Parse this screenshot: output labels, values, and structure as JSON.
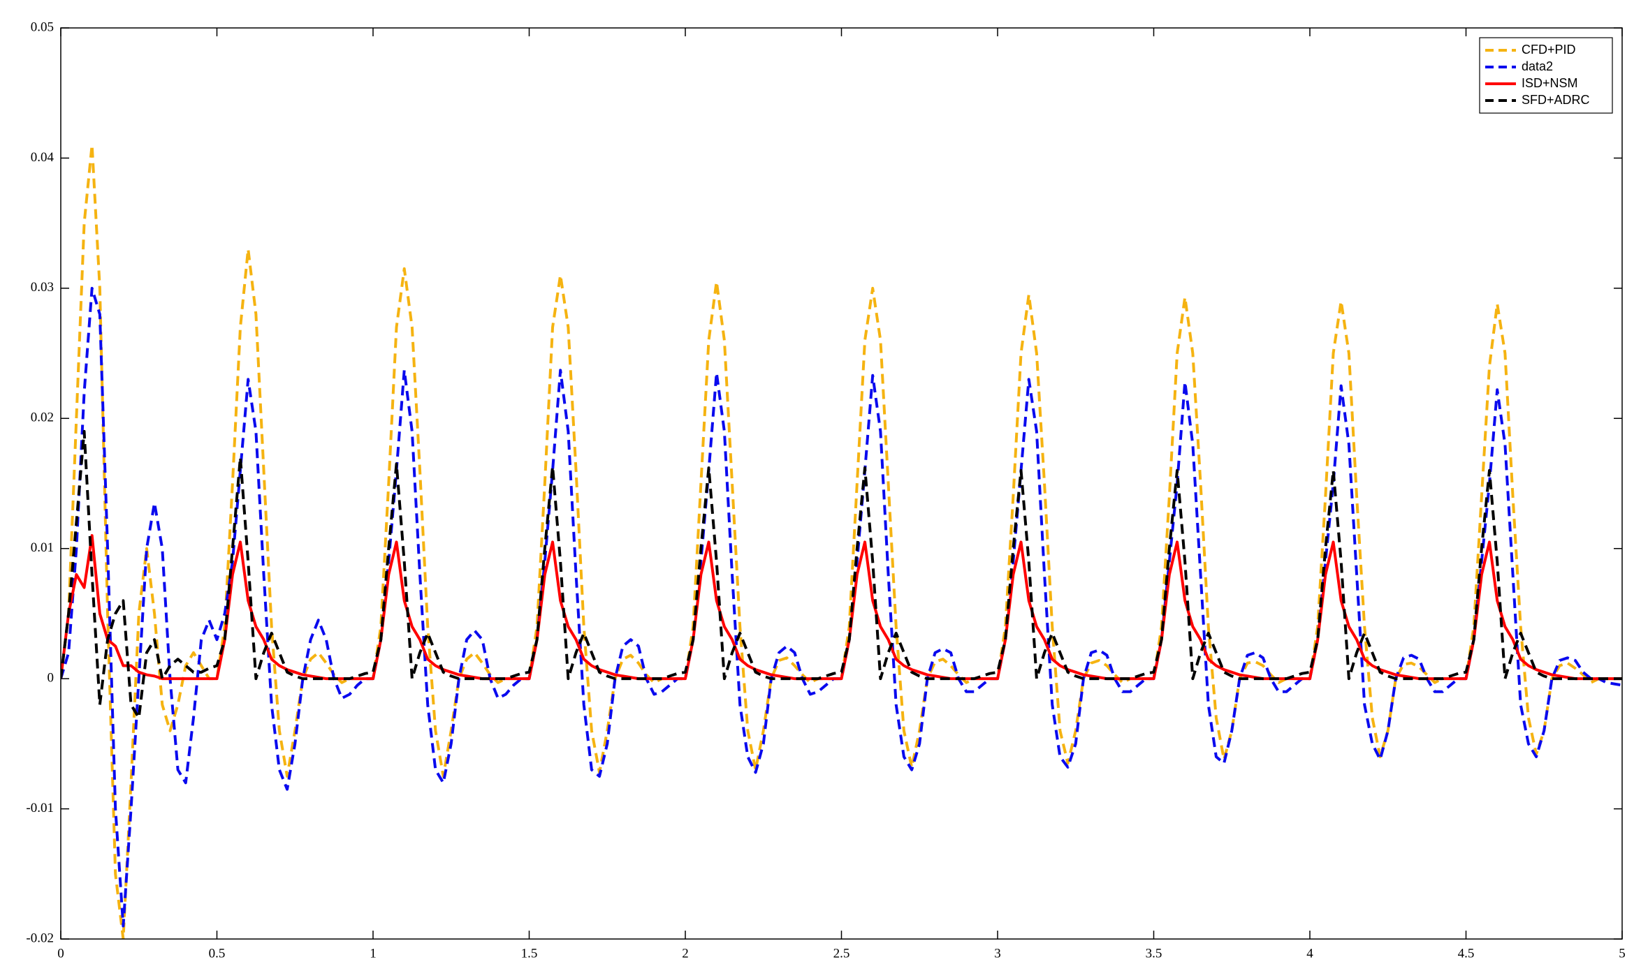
{
  "chart_data": {
    "type": "line",
    "x": [
      0,
      0.025,
      0.05,
      0.075,
      0.1,
      0.125,
      0.15,
      0.175,
      0.2,
      0.225,
      0.25,
      0.275,
      0.3,
      0.325,
      0.35,
      0.375,
      0.4,
      0.425,
      0.45,
      0.475,
      0.5,
      0.525,
      0.55,
      0.575,
      0.6,
      0.625,
      0.65,
      0.675,
      0.7,
      0.725,
      0.75,
      0.775,
      0.8,
      0.825,
      0.85,
      0.875,
      0.9,
      0.925,
      0.95,
      0.975,
      1,
      1.025,
      1.05,
      1.075,
      1.1,
      1.125,
      1.15,
      1.175,
      1.2,
      1.225,
      1.25,
      1.275,
      1.3,
      1.325,
      1.35,
      1.375,
      1.4,
      1.425,
      1.45,
      1.475,
      1.5,
      1.525,
      1.55,
      1.575,
      1.6,
      1.625,
      1.65,
      1.675,
      1.7,
      1.725,
      1.75,
      1.775,
      1.8,
      1.825,
      1.85,
      1.875,
      1.9,
      1.925,
      1.95,
      1.975,
      2,
      2.025,
      2.05,
      2.075,
      2.1,
      2.125,
      2.15,
      2.175,
      2.2,
      2.225,
      2.25,
      2.275,
      2.3,
      2.325,
      2.35,
      2.375,
      2.4,
      2.425,
      2.45,
      2.475,
      2.5,
      2.525,
      2.55,
      2.575,
      2.6,
      2.625,
      2.65,
      2.675,
      2.7,
      2.725,
      2.75,
      2.775,
      2.8,
      2.825,
      2.85,
      2.875,
      2.9,
      2.925,
      2.95,
      2.975,
      3,
      3.025,
      3.05,
      3.075,
      3.1,
      3.125,
      3.15,
      3.175,
      3.2,
      3.225,
      3.25,
      3.275,
      3.3,
      3.325,
      3.35,
      3.375,
      3.4,
      3.425,
      3.45,
      3.475,
      3.5,
      3.525,
      3.55,
      3.575,
      3.6,
      3.625,
      3.65,
      3.675,
      3.7,
      3.725,
      3.75,
      3.775,
      3.8,
      3.825,
      3.85,
      3.875,
      3.9,
      3.925,
      3.95,
      3.975,
      4,
      4.025,
      4.05,
      4.075,
      4.1,
      4.125,
      4.15,
      4.175,
      4.2,
      4.225,
      4.25,
      4.275,
      4.3,
      4.325,
      4.35,
      4.375,
      4.4,
      4.425,
      4.45,
      4.475,
      4.5,
      4.525,
      4.55,
      4.575,
      4.6,
      4.625,
      4.65,
      4.675,
      4.7,
      4.725,
      4.75,
      4.775,
      4.8,
      4.825,
      4.85,
      4.875,
      4.9,
      4.925,
      4.95,
      4.975,
      5
    ],
    "series": [
      {
        "name": "CFD+PID",
        "color": "#f5b311",
        "dash": true,
        "values": [
          0,
          0.005,
          0.02,
          0.035,
          0.041,
          0.03,
          0.005,
          -0.015,
          -0.02,
          -0.008,
          0.005,
          0.01,
          0.005,
          -0.002,
          -0.004,
          -0.002,
          0.001,
          0.002,
          0.001,
          0,
          0,
          0.004,
          0.015,
          0.027,
          0.033,
          0.028,
          0.016,
          0.004,
          -0.004,
          -0.0075,
          -0.004,
          0,
          0.0015,
          0.002,
          0.0012,
          0.0003,
          -0.0003,
          0,
          0,
          0,
          0,
          0.004,
          0.015,
          0.027,
          0.0315,
          0.027,
          0.016,
          0.004,
          -0.004,
          -0.0075,
          -0.004,
          0,
          0.0015,
          0.002,
          0.0012,
          0.0003,
          -0.0003,
          0,
          0,
          0,
          0,
          0.004,
          0.015,
          0.027,
          0.031,
          0.027,
          0.016,
          0.004,
          -0.004,
          -0.0072,
          -0.004,
          0,
          0.0015,
          0.0018,
          0.0012,
          0.0003,
          -0.0003,
          0,
          0,
          0,
          0,
          0.004,
          0.015,
          0.026,
          0.0305,
          0.026,
          0.015,
          0.004,
          -0.004,
          -0.007,
          -0.004,
          0,
          0.0014,
          0.0016,
          0.001,
          0.0003,
          -0.0003,
          0,
          0,
          0,
          0,
          0.004,
          0.015,
          0.026,
          0.03,
          0.026,
          0.015,
          0.004,
          -0.004,
          -0.0068,
          -0.004,
          0,
          0.0013,
          0.0015,
          0.001,
          0.0003,
          -0.0003,
          0,
          0,
          0,
          0,
          0.004,
          0.014,
          0.025,
          0.0295,
          0.025,
          0.015,
          0.004,
          -0.004,
          -0.0065,
          -0.004,
          0,
          0.0012,
          0.0014,
          0.001,
          0.0003,
          -0.0003,
          0,
          0,
          0,
          0,
          0.004,
          0.014,
          0.025,
          0.0293,
          0.025,
          0.015,
          0.004,
          -0.003,
          -0.0062,
          -0.004,
          0,
          0.0012,
          0.0013,
          0.001,
          0.0003,
          -0.0003,
          0,
          0,
          0,
          0,
          0.004,
          0.014,
          0.025,
          0.029,
          0.025,
          0.014,
          0.004,
          -0.003,
          -0.006,
          -0.004,
          0,
          0.0011,
          0.0012,
          0.0009,
          0.0003,
          -0.0003,
          0,
          0,
          0,
          0,
          0.004,
          0.014,
          0.024,
          0.0288,
          0.025,
          0.014,
          0.004,
          -0.003,
          -0.0058,
          -0.004,
          0,
          0.001,
          0.0012,
          0.0008,
          0.0003,
          -0.0003,
          0,
          0,
          0,
          0
        ]
      },
      {
        "name": "data2",
        "color": "#0a0aee",
        "dash": true,
        "values": [
          0,
          0.002,
          0.01,
          0.022,
          0.03,
          0.028,
          0.01,
          -0.01,
          -0.019,
          -0.01,
          0,
          0.01,
          0.0135,
          0.01,
          0,
          -0.007,
          -0.008,
          -0.003,
          0.003,
          0.0045,
          0.003,
          0.005,
          0.009,
          0.016,
          0.023,
          0.019,
          0.008,
          -0.002,
          -0.007,
          -0.0085,
          -0.005,
          0,
          0.003,
          0.0045,
          0.003,
          0,
          -0.0015,
          -0.0012,
          -0.0005,
          0,
          0,
          0.003,
          0.009,
          0.016,
          0.0237,
          0.019,
          0.008,
          -0.002,
          -0.007,
          -0.008,
          -0.005,
          0,
          0.003,
          0.0037,
          0.003,
          0,
          -0.0015,
          -0.0012,
          -0.0005,
          0,
          0,
          0.003,
          0.009,
          0.016,
          0.0237,
          0.019,
          0.008,
          -0.002,
          -0.007,
          -0.0075,
          -0.005,
          0,
          0.0025,
          0.003,
          0.0025,
          0,
          -0.0012,
          -0.001,
          -0.0005,
          0,
          0,
          0.003,
          0.009,
          0.016,
          0.0235,
          0.019,
          0.008,
          -0.002,
          -0.006,
          -0.0072,
          -0.005,
          0,
          0.002,
          0.0025,
          0.002,
          0,
          -0.0012,
          -0.001,
          -0.0005,
          0,
          0,
          0.003,
          0.009,
          0.016,
          0.0233,
          0.019,
          0.008,
          -0.002,
          -0.006,
          -0.007,
          -0.005,
          0,
          0.002,
          0.0023,
          0.002,
          0,
          -0.001,
          -0.001,
          -0.0005,
          0,
          0,
          0.003,
          0.009,
          0.016,
          0.023,
          0.019,
          0.008,
          -0.002,
          -0.006,
          -0.0068,
          -0.005,
          0,
          0.002,
          0.0022,
          0.0018,
          0,
          -0.001,
          -0.001,
          -0.0005,
          0,
          0,
          0.003,
          0.009,
          0.015,
          0.0228,
          0.018,
          0.008,
          -0.002,
          -0.006,
          -0.0065,
          -0.004,
          0,
          0.0018,
          0.002,
          0.0016,
          0,
          -0.001,
          -0.001,
          -0.0005,
          0,
          0,
          0.003,
          0.009,
          0.015,
          0.0225,
          0.018,
          0.008,
          -0.002,
          -0.005,
          -0.0062,
          -0.004,
          0,
          0.0016,
          0.0018,
          0.0015,
          0,
          -0.001,
          -0.001,
          -0.0005,
          0,
          0,
          0.003,
          0.009,
          0.015,
          0.0222,
          0.018,
          0.008,
          -0.002,
          -0.005,
          -0.006,
          -0.004,
          0,
          0.0014,
          0.0016,
          0.0014,
          0.0005,
          0,
          0,
          -0.0003,
          -0.0004,
          -0.0005
        ]
      },
      {
        "name": "ISD+NSM",
        "color": "#ff0000",
        "dash": false,
        "values": [
          0,
          0.005,
          0.008,
          0.007,
          0.011,
          0.005,
          0.003,
          0.0025,
          0.001,
          0.001,
          0.0005,
          0.0003,
          0.0002,
          0,
          0,
          0,
          0,
          0,
          0,
          0,
          0,
          0.003,
          0.008,
          0.0105,
          0.006,
          0.004,
          0.003,
          0.0015,
          0.001,
          0.0007,
          0.0005,
          0.0003,
          0.0002,
          0.0001,
          0,
          0,
          0,
          0,
          0,
          0,
          0,
          0.003,
          0.008,
          0.0105,
          0.006,
          0.004,
          0.003,
          0.0015,
          0.001,
          0.0007,
          0.0005,
          0.0003,
          0.0002,
          0.0001,
          0,
          0,
          0,
          0,
          0,
          0,
          0,
          0.003,
          0.008,
          0.0105,
          0.006,
          0.004,
          0.003,
          0.0015,
          0.001,
          0.0007,
          0.0005,
          0.0003,
          0.0002,
          0.0001,
          0,
          0,
          0,
          0,
          0,
          0,
          0,
          0.003,
          0.008,
          0.0105,
          0.006,
          0.004,
          0.003,
          0.0015,
          0.001,
          0.0007,
          0.0005,
          0.0003,
          0.0002,
          0.0001,
          0,
          0,
          0,
          0,
          0,
          0,
          0,
          0.003,
          0.008,
          0.0105,
          0.006,
          0.004,
          0.003,
          0.0015,
          0.001,
          0.0007,
          0.0005,
          0.0003,
          0.0002,
          0.0001,
          0,
          0,
          0,
          0,
          0,
          0,
          0,
          0.003,
          0.008,
          0.0105,
          0.006,
          0.004,
          0.003,
          0.0015,
          0.001,
          0.0007,
          0.0005,
          0.0003,
          0.0002,
          0.0001,
          0,
          0,
          0,
          0,
          0,
          0,
          0,
          0.003,
          0.008,
          0.0105,
          0.006,
          0.004,
          0.003,
          0.0015,
          0.001,
          0.0007,
          0.0005,
          0.0003,
          0.0002,
          0.0001,
          0,
          0,
          0,
          0,
          0,
          0,
          0,
          0.003,
          0.008,
          0.0105,
          0.006,
          0.004,
          0.003,
          0.0015,
          0.001,
          0.0007,
          0.0005,
          0.0003,
          0.0002,
          0.0001,
          0,
          0,
          0,
          0,
          0,
          0,
          0,
          0.003,
          0.008,
          0.0105,
          0.006,
          0.004,
          0.003,
          0.0015,
          0.001,
          0.0007,
          0.0005,
          0.0003,
          0.0002,
          0.0001,
          0,
          0,
          0,
          0,
          0,
          0,
          0
        ]
      },
      {
        "name": "SFD+ADRC",
        "color": "#000000",
        "dash": true,
        "values": [
          0,
          0.005,
          0.012,
          0.019,
          0.008,
          -0.002,
          0.003,
          0.005,
          0.006,
          -0.002,
          -0.003,
          0.002,
          0.003,
          0,
          0.001,
          0.0015,
          0.001,
          0.0005,
          0.0005,
          0.0008,
          0.001,
          0.003,
          0.01,
          0.017,
          0.009,
          0,
          0.002,
          0.0035,
          0.002,
          0.0005,
          0.0002,
          0,
          0,
          0,
          0,
          0,
          0,
          0,
          0.0002,
          0.0004,
          0.0005,
          0.003,
          0.01,
          0.0165,
          0.009,
          0,
          0.002,
          0.0035,
          0.002,
          0.0005,
          0.0002,
          0,
          0,
          0,
          0,
          0,
          0,
          0,
          0.0002,
          0.0004,
          0.0005,
          0.003,
          0.01,
          0.0163,
          0.009,
          0,
          0.002,
          0.0035,
          0.002,
          0.0005,
          0.0002,
          0,
          0,
          0,
          0,
          0,
          0,
          0,
          0.0002,
          0.0004,
          0.0005,
          0.003,
          0.01,
          0.0162,
          0.009,
          0,
          0.002,
          0.0035,
          0.002,
          0.0005,
          0.0002,
          0,
          0,
          0,
          0,
          0,
          0,
          0,
          0.0002,
          0.0004,
          0.0005,
          0.003,
          0.01,
          0.0162,
          0.009,
          0,
          0.002,
          0.0035,
          0.002,
          0.0005,
          0.0002,
          0,
          0,
          0,
          0,
          0,
          0,
          0,
          0.0002,
          0.0004,
          0.0005,
          0.003,
          0.01,
          0.016,
          0.009,
          0,
          0.002,
          0.0035,
          0.002,
          0.0005,
          0.0002,
          0,
          0,
          0,
          0,
          0,
          0,
          0,
          0.0002,
          0.0004,
          0.0005,
          0.003,
          0.01,
          0.016,
          0.009,
          0,
          0.002,
          0.0035,
          0.002,
          0.0005,
          0.0002,
          0,
          0,
          0,
          0,
          0,
          0,
          0,
          0.0002,
          0.0004,
          0.0005,
          0.003,
          0.01,
          0.016,
          0.009,
          0,
          0.002,
          0.0035,
          0.002,
          0.0005,
          0.0002,
          0,
          0,
          0,
          0,
          0,
          0,
          0,
          0.0002,
          0.0004,
          0.0005,
          0.003,
          0.01,
          0.016,
          0.009,
          0,
          0.002,
          0.0035,
          0.002,
          0.0005,
          0.0002,
          0,
          0,
          0,
          0,
          0,
          0,
          0,
          0,
          0,
          0
        ]
      }
    ],
    "xlim": [
      0,
      5
    ],
    "xticks": [
      0,
      0.5,
      1,
      1.5,
      2,
      2.5,
      3,
      3.5,
      4,
      4.5,
      5
    ],
    "ylim": [
      -0.02,
      0.05
    ],
    "yticks": [
      -0.02,
      -0.01,
      0,
      0.01,
      0.02,
      0.03,
      0.04,
      0.05
    ],
    "grid": false,
    "legend": "northeast"
  }
}
